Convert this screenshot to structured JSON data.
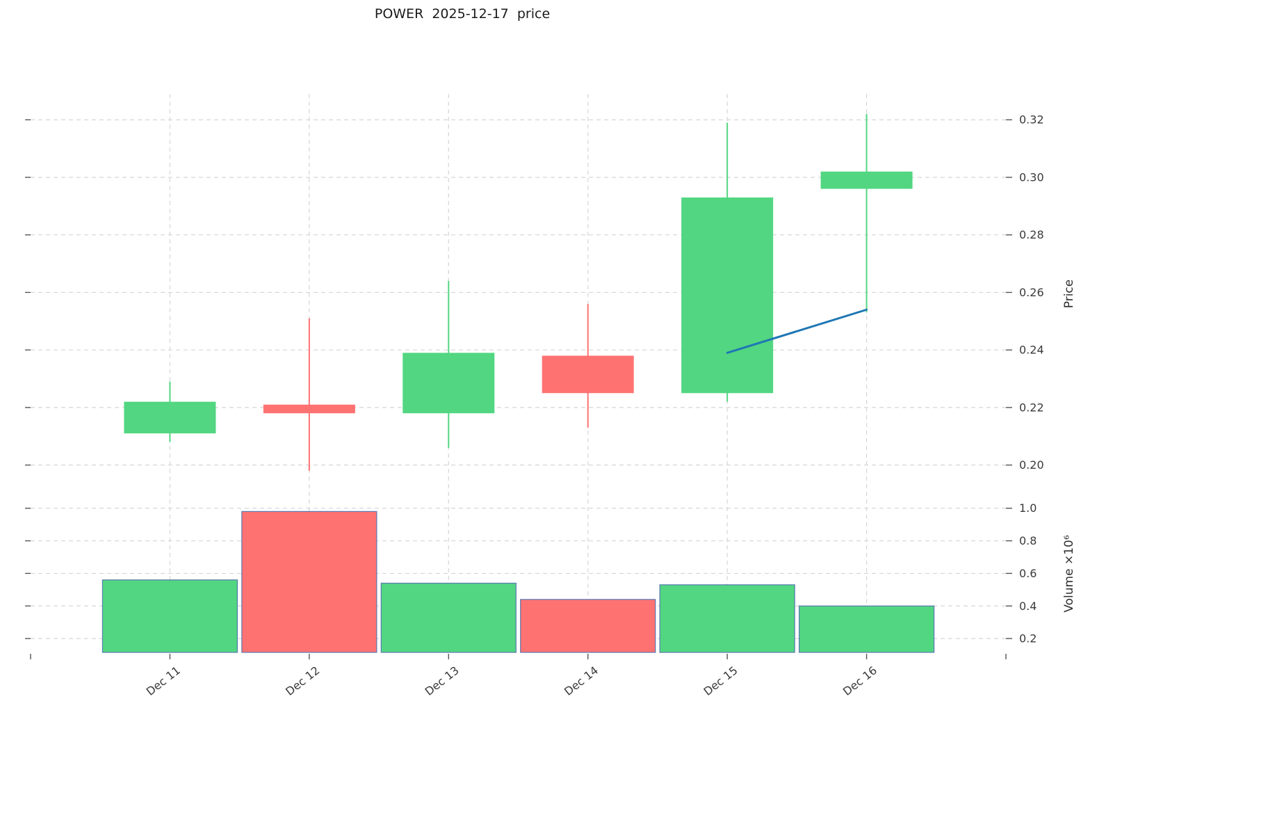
{
  "title": "POWER  2025-12-17  price",
  "colors": {
    "up": "#52d681",
    "down": "#ff7272",
    "volume_edge": "#5878b0",
    "grid": "#d6d6d6",
    "tick": "#555555",
    "trend_line": "#1f77b4"
  },
  "chart_data": {
    "type": "candlestick",
    "title": "POWER  2025-12-17  price",
    "x": [
      "Dec 11",
      "Dec 12",
      "Dec 13",
      "Dec 14",
      "Dec 15",
      "Dec 16"
    ],
    "series": [
      {
        "date": "Dec 11",
        "open": 0.211,
        "high": 0.229,
        "low": 0.208,
        "close": 0.222,
        "volume_millions": 0.56
      },
      {
        "date": "Dec 12",
        "open": 0.221,
        "high": 0.251,
        "low": 0.198,
        "close": 0.218,
        "volume_millions": 0.98
      },
      {
        "date": "Dec 13",
        "open": 0.218,
        "high": 0.264,
        "low": 0.206,
        "close": 0.239,
        "volume_millions": 0.54
      },
      {
        "date": "Dec 14",
        "open": 0.238,
        "high": 0.256,
        "low": 0.213,
        "close": 0.225,
        "volume_millions": 0.44
      },
      {
        "date": "Dec 15",
        "open": 0.225,
        "high": 0.319,
        "low": 0.222,
        "close": 0.293,
        "volume_millions": 0.53
      },
      {
        "date": "Dec 16",
        "open": 0.296,
        "high": 0.322,
        "low": 0.253,
        "close": 0.302,
        "volume_millions": 0.4
      }
    ],
    "trend_line": {
      "points": [
        {
          "x": "Dec 15",
          "price": 0.239
        },
        {
          "x": "Dec 16",
          "price": 0.254
        }
      ]
    },
    "price_axis": {
      "label": "Price",
      "side": "right",
      "ylim": [
        0.19,
        0.329
      ],
      "ticks": [
        0.2,
        0.22,
        0.24,
        0.26,
        0.28,
        0.3,
        0.32
      ],
      "tick_labels": [
        "0.20",
        "0.22",
        "0.24",
        "0.26",
        "0.28",
        "0.30",
        "0.32"
      ]
    },
    "volume_axis": {
      "label": "Volume ×10⁶",
      "side": "right",
      "ylim": [
        0.115,
        1.08
      ],
      "ticks": [
        0.2,
        0.4,
        0.6,
        0.8,
        1.0
      ],
      "tick_labels": [
        "0.2",
        "0.4",
        "0.6",
        "0.8",
        "1.0"
      ]
    },
    "grid": "dashed"
  }
}
